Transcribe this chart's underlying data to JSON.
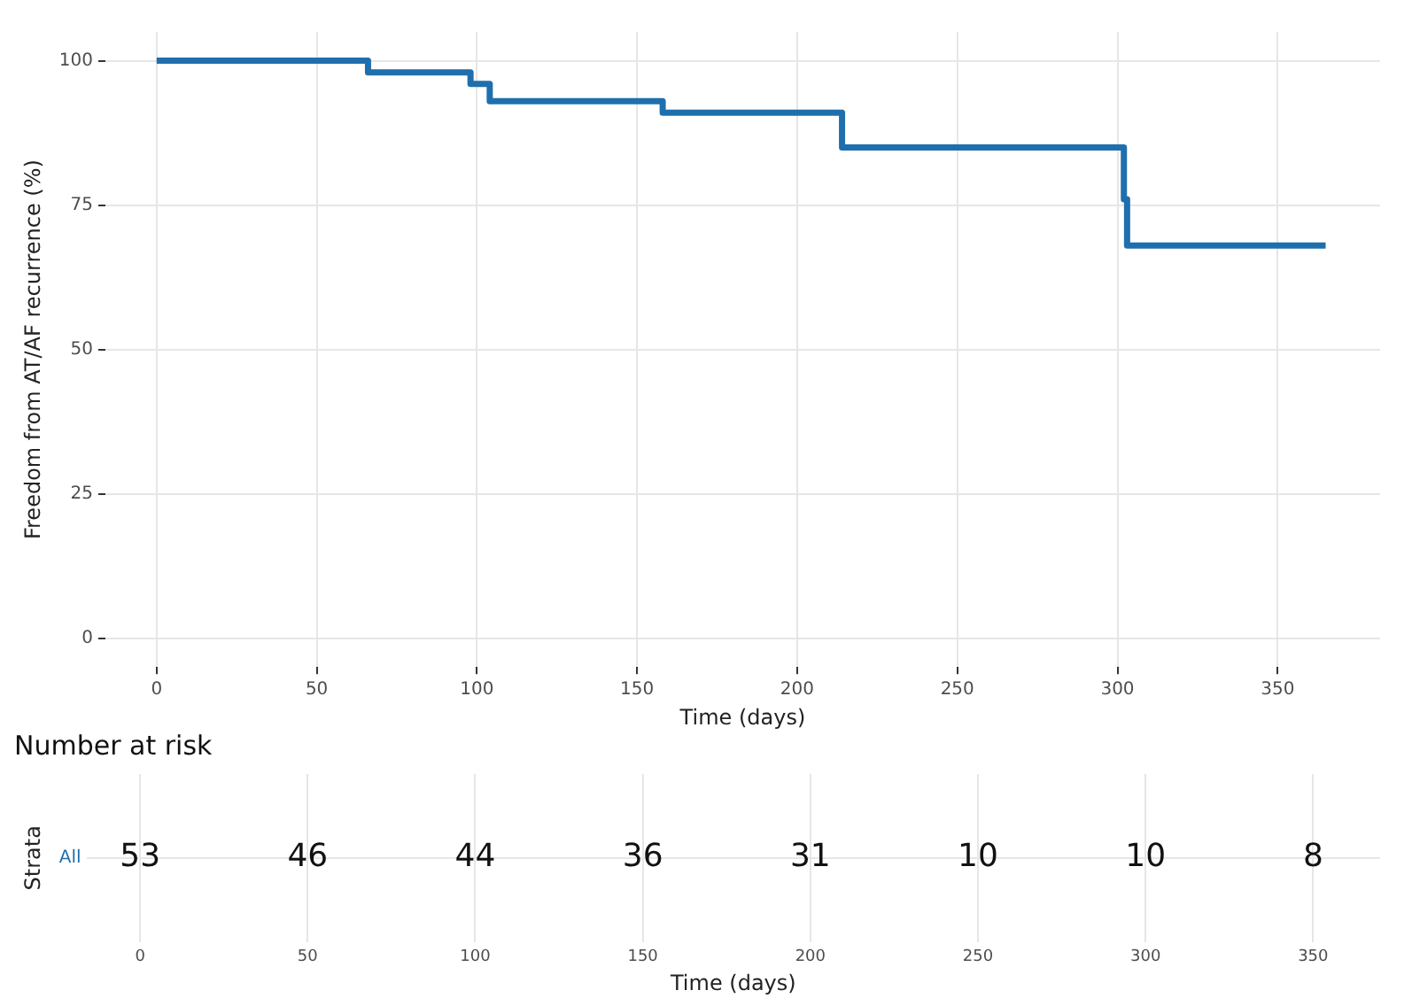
{
  "chart_data": [
    {
      "type": "step",
      "xlabel": "Time (days)",
      "ylabel": "Freedom from AT/AF recurrence (%)",
      "x": [
        0,
        66,
        98,
        104,
        158,
        214,
        302,
        303,
        365
      ],
      "series": [
        {
          "color": "#1f6fad",
          "values": [
            100,
            98,
            96,
            93,
            91,
            85,
            76,
            68,
            68
          ]
        }
      ],
      "xlim": [
        -16,
        382
      ],
      "xticks": [
        0,
        50,
        100,
        150,
        200,
        250,
        300,
        350
      ],
      "ylim": [
        -5,
        105
      ],
      "yticks": [
        0,
        25,
        50,
        75,
        100
      ],
      "grid": true,
      "legend": false
    },
    {
      "type": "heatmap",
      "title": "Number at risk",
      "xlabel": "Time (days)",
      "ylabel": "Strata",
      "categories": [
        "0",
        "50",
        "100",
        "150",
        "200",
        "250",
        "300",
        "350"
      ],
      "y_categories": [
        "All"
      ],
      "cells": [
        [
          53,
          46,
          44,
          36,
          31,
          10,
          10,
          8
        ]
      ],
      "data_labels": true,
      "grid": true
    }
  ]
}
